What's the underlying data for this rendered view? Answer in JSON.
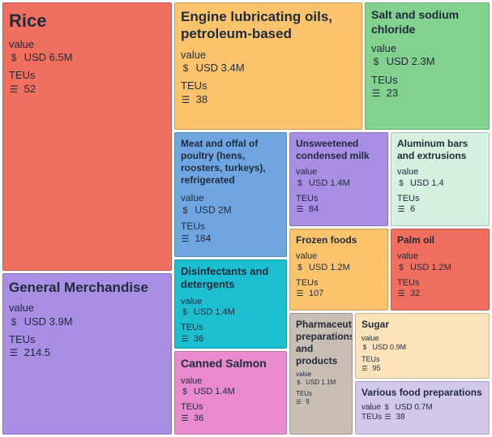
{
  "chart_data": {
    "type": "treemap",
    "size_metric": "value",
    "metric_label": "value",
    "secondary_label": "TEUs",
    "currency": "USD",
    "icons": {
      "value": "dollar-icon",
      "teus": "stack-icon"
    },
    "items": [
      {
        "name": "Rice",
        "value": 6.5,
        "value_text": "USD 6.5M",
        "teus": 52,
        "color": "#f16f5f"
      },
      {
        "name": "General Merchandise",
        "value": 3.9,
        "value_text": "USD 3.9M",
        "teus": 214.5,
        "color": "#a88ee4"
      },
      {
        "name": "Engine lubricating oils, petroleum-based",
        "value": 3.4,
        "value_text": "USD 3.4M",
        "teus": 38,
        "color": "#fdc46d"
      },
      {
        "name": "Salt and sodium chloride",
        "value": 2.3,
        "value_text": "USD 2.3M",
        "teus": 23,
        "color": "#83d18f"
      },
      {
        "name": "Meat and offal of poultry (hens, roosters, turkeys), refrigerated",
        "value": 2.0,
        "value_text": "USD 2M",
        "teus": 184,
        "color": "#6fa6e2"
      },
      {
        "name": "Disinfectants and detergents",
        "value": 1.4,
        "value_text": "USD 1.4M",
        "teus": 36,
        "color": "#1cbfcf"
      },
      {
        "name": "Canned Salmon",
        "value": 1.4,
        "value_text": "USD 1.4M",
        "teus": 36,
        "color": "#e88acd"
      },
      {
        "name": "Unsweetened condensed milk",
        "value": 1.4,
        "value_text": "USD 1.4M",
        "teus": 84,
        "color": "#a88ee4"
      },
      {
        "name": "Aluminum bars and extrusions",
        "value": 1.4,
        "value_text": "USD 1.4",
        "teus": 6,
        "color": "#d5f1df"
      },
      {
        "name": "Frozen foods",
        "value": 1.2,
        "value_text": "USD 1.2M",
        "teus": 107,
        "color": "#fdc46d"
      },
      {
        "name": "Palm oil",
        "value": 1.2,
        "value_text": "USD 1.2M",
        "teus": 32,
        "color": "#f16f5f"
      },
      {
        "name": "Pharmaceutical preparations and products",
        "value": 1.1,
        "value_text": "USD 1.1M",
        "teus": 9,
        "color": "#c8beb3"
      },
      {
        "name": "Sugar",
        "value": 0.9,
        "value_text": "USD 0.9M",
        "teus": 95,
        "color": "#fde3b9"
      },
      {
        "name": "Various food preparations",
        "value": 0.7,
        "value_text": "USD 0.7M",
        "teus": 38,
        "color": "#d3c8ea"
      }
    ]
  }
}
